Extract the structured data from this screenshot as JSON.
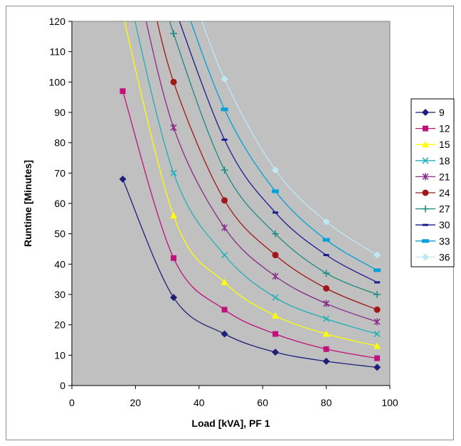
{
  "chart_data": {
    "type": "line",
    "xlabel": "Load [kVA], PF 1",
    "ylabel": "Runtime [Minutes]",
    "xlim": [
      0,
      100
    ],
    "ylim": [
      0,
      120
    ],
    "xticks": [
      0,
      20,
      40,
      60,
      80,
      100
    ],
    "yticks": [
      0,
      10,
      20,
      30,
      40,
      50,
      60,
      70,
      80,
      90,
      100,
      110,
      120
    ],
    "x": [
      16,
      32,
      48,
      64,
      80,
      96
    ],
    "grid": false,
    "plot_background": "#c0c0c0",
    "legend_position": "right",
    "series": [
      {
        "name": "9",
        "color": "#1f1f7a",
        "marker": "diamond",
        "values": [
          68,
          29,
          17,
          11,
          8,
          6
        ]
      },
      {
        "name": "12",
        "color": "#c0127a",
        "marker": "square",
        "values": [
          97,
          42,
          25,
          17,
          12,
          9
        ]
      },
      {
        "name": "15",
        "color": "#ffff00",
        "marker": "triangle",
        "values": [
          null,
          56,
          34,
          23,
          17,
          13
        ]
      },
      {
        "name": "18",
        "color": "#1fb0b8",
        "marker": "x",
        "values": [
          null,
          70,
          43,
          29,
          22,
          17
        ]
      },
      {
        "name": "21",
        "color": "#8a2a8a",
        "marker": "star",
        "values": [
          null,
          85,
          52,
          36,
          27,
          21
        ]
      },
      {
        "name": "24",
        "color": "#a01818",
        "marker": "circle",
        "values": [
          null,
          100,
          61,
          43,
          32,
          25
        ]
      },
      {
        "name": "27",
        "color": "#1a8a80",
        "marker": "plus",
        "values": [
          null,
          116,
          71,
          50,
          37,
          30
        ]
      },
      {
        "name": "30",
        "color": "#1c1c90",
        "marker": "dash",
        "values": [
          null,
          null,
          81,
          57,
          43,
          34
        ]
      },
      {
        "name": "33",
        "color": "#00a0d8",
        "marker": "wide-square",
        "values": [
          null,
          null,
          91,
          64,
          48,
          38
        ]
      },
      {
        "name": "36",
        "color": "#bfe8f5",
        "marker": "diamond",
        "values": [
          null,
          null,
          101,
          71,
          54,
          43
        ]
      }
    ]
  }
}
